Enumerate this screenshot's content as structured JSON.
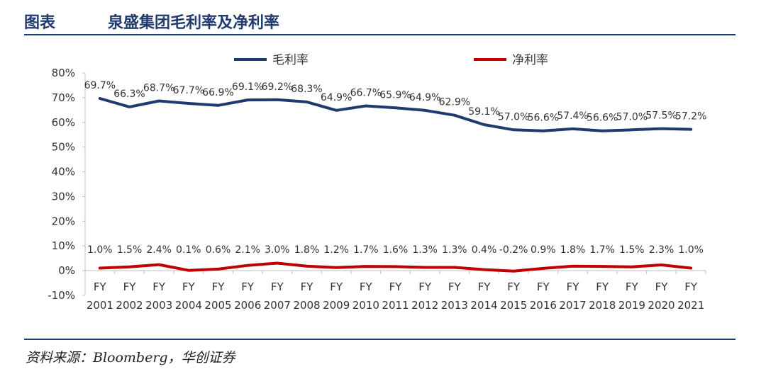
{
  "header": {
    "label": "图表",
    "title": "泉盛集团毛利率及净利率"
  },
  "source": "资料来源：Bloomberg，华创证券",
  "colors": {
    "gross": "#1f3a6e",
    "net": "#c00000",
    "rule": "#1f3a6e"
  },
  "chart_data": {
    "type": "line",
    "title": "",
    "xlabel": "",
    "ylabel": "",
    "ylim": [
      -10,
      80
    ],
    "yticks": [
      "80%",
      "70%",
      "60%",
      "50%",
      "40%",
      "30%",
      "20%",
      "10%",
      "0%",
      "-10%"
    ],
    "ytick_values": [
      80,
      70,
      60,
      50,
      40,
      30,
      20,
      10,
      0,
      -10
    ],
    "legend_position": "top-center",
    "categories": [
      [
        "FY",
        "2001"
      ],
      [
        "FY",
        "2002"
      ],
      [
        "FY",
        "2003"
      ],
      [
        "FY",
        "2004"
      ],
      [
        "FY",
        "2005"
      ],
      [
        "FY",
        "2006"
      ],
      [
        "FY",
        "2007"
      ],
      [
        "FY",
        "2008"
      ],
      [
        "FY",
        "2009"
      ],
      [
        "FY",
        "2010"
      ],
      [
        "FY",
        "2011"
      ],
      [
        "FY",
        "2012"
      ],
      [
        "FY",
        "2013"
      ],
      [
        "FY",
        "2014"
      ],
      [
        "FY",
        "2015"
      ],
      [
        "FY",
        "2016"
      ],
      [
        "FY",
        "2017"
      ],
      [
        "FY",
        "2018"
      ],
      [
        "FY",
        "2019"
      ],
      [
        "FY",
        "2020"
      ],
      [
        "FY",
        "2021"
      ]
    ],
    "series": [
      {
        "name": "毛利率",
        "color": "#1f3a6e",
        "values": [
          69.7,
          66.3,
          68.7,
          67.7,
          66.9,
          69.1,
          69.2,
          68.3,
          64.9,
          66.7,
          65.9,
          64.9,
          62.9,
          59.1,
          57.0,
          56.6,
          57.4,
          56.6,
          57.0,
          57.5,
          57.2
        ],
        "labels": [
          "69.7%",
          "66.3%",
          "68.7%",
          "67.7%",
          "66.9%",
          "69.1%",
          "69.2%",
          "68.3%",
          "64.9%",
          "66.7%",
          "65.9%",
          "64.9%",
          "62.9%",
          "59.1%",
          "57.0%",
          "56.6%",
          "57.4%",
          "56.6%",
          "57.0%",
          "57.5%",
          "57.2%"
        ]
      },
      {
        "name": "净利率",
        "color": "#c00000",
        "values": [
          1.0,
          1.5,
          2.4,
          0.1,
          0.6,
          2.1,
          3.0,
          1.8,
          1.2,
          1.7,
          1.6,
          1.3,
          1.3,
          0.4,
          -0.2,
          0.9,
          1.8,
          1.7,
          1.5,
          2.3,
          1.0
        ],
        "labels": [
          "1.0%",
          "1.5%",
          "2.4%",
          "0.1%",
          "0.6%",
          "2.1%",
          "3.0%",
          "1.8%",
          "1.2%",
          "1.7%",
          "1.6%",
          "1.3%",
          "1.3%",
          "0.4%",
          "-0.2%",
          "0.9%",
          "1.8%",
          "1.7%",
          "1.5%",
          "2.3%",
          "1.0%"
        ]
      }
    ]
  }
}
